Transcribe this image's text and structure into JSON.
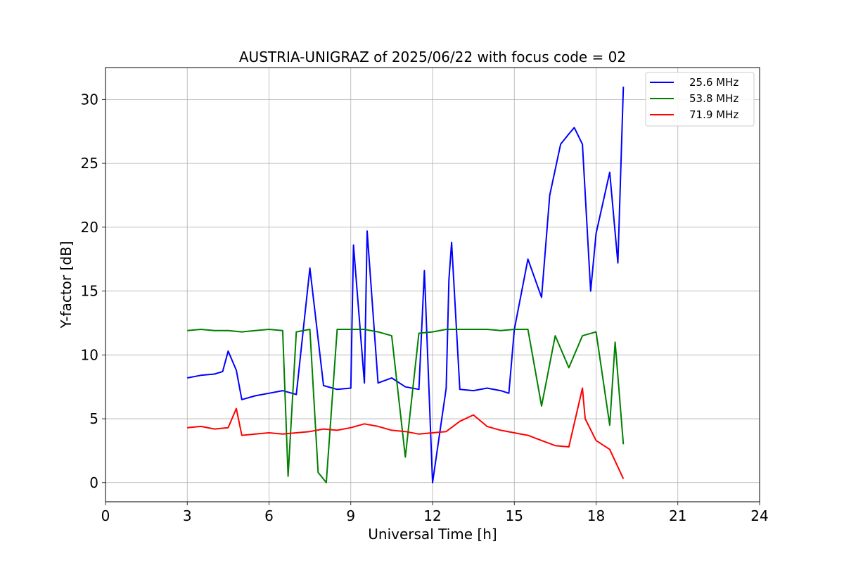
{
  "chart_data": {
    "type": "line",
    "title": "AUSTRIA-UNIGRAZ of 2025/06/22 with focus code = 02",
    "xlabel": "Universal Time [h]",
    "ylabel": "Y-factor [dB]",
    "xlim": [
      0,
      24
    ],
    "ylim": [
      -1.5,
      32.5
    ],
    "xticks": [
      0,
      3,
      6,
      9,
      12,
      15,
      18,
      21,
      24
    ],
    "yticks": [
      0,
      5,
      10,
      15,
      20,
      25,
      30
    ],
    "grid": true,
    "legend_position": "top-right",
    "series": [
      {
        "name": "25.6 MHz",
        "color": "#0000ff",
        "x": [
          3.0,
          3.5,
          4.0,
          4.3,
          4.5,
          4.8,
          5.0,
          5.5,
          6.0,
          6.5,
          7.0,
          7.5,
          8.0,
          8.5,
          9.0,
          9.1,
          9.5,
          9.6,
          10.0,
          10.5,
          11.0,
          11.5,
          11.7,
          12.0,
          12.5,
          12.6,
          12.7,
          13.0,
          13.5,
          14.0,
          14.5,
          14.8,
          15.0,
          15.5,
          16.0,
          16.3,
          16.7,
          17.0,
          17.2,
          17.5,
          17.8,
          18.0,
          18.5,
          18.8,
          19.0
        ],
        "y": [
          8.2,
          8.4,
          8.5,
          8.7,
          10.3,
          8.8,
          6.5,
          6.8,
          7.0,
          7.2,
          6.9,
          16.8,
          7.6,
          7.3,
          7.4,
          18.6,
          7.8,
          19.7,
          7.8,
          8.2,
          7.5,
          7.3,
          16.6,
          0.0,
          7.4,
          15.9,
          18.8,
          7.3,
          7.2,
          7.4,
          7.2,
          7.0,
          12.0,
          17.5,
          14.5,
          22.5,
          26.5,
          27.3,
          27.8,
          26.5,
          15.0,
          19.5,
          24.3,
          17.2,
          31.0
        ]
      },
      {
        "name": "53.8 MHz",
        "color": "#008000",
        "x": [
          3.0,
          3.5,
          4.0,
          4.5,
          5.0,
          5.5,
          6.0,
          6.5,
          6.7,
          7.0,
          7.5,
          7.8,
          8.1,
          8.5,
          9.0,
          9.5,
          10.0,
          10.5,
          11.0,
          11.5,
          12.0,
          12.5,
          13.0,
          13.5,
          14.0,
          14.5,
          15.0,
          15.5,
          16.0,
          16.5,
          17.0,
          17.5,
          18.0,
          18.5,
          18.7,
          19.0
        ],
        "y": [
          11.9,
          12.0,
          11.9,
          11.9,
          11.8,
          11.9,
          12.0,
          11.9,
          0.5,
          11.8,
          12.0,
          0.8,
          0.0,
          12.0,
          12.0,
          12.0,
          11.8,
          11.5,
          2.0,
          11.7,
          11.8,
          12.0,
          12.0,
          12.0,
          12.0,
          11.9,
          12.0,
          12.0,
          6.0,
          11.5,
          9.0,
          11.5,
          11.8,
          4.5,
          11.0,
          3.0
        ]
      },
      {
        "name": "71.9 MHz",
        "color": "#ff0000",
        "x": [
          3.0,
          3.5,
          4.0,
          4.5,
          4.8,
          5.0,
          5.5,
          6.0,
          6.5,
          7.0,
          7.5,
          8.0,
          8.5,
          9.0,
          9.5,
          10.0,
          10.5,
          11.0,
          11.5,
          12.0,
          12.5,
          13.0,
          13.5,
          14.0,
          14.5,
          15.0,
          15.5,
          16.0,
          16.5,
          17.0,
          17.5,
          17.6,
          18.0,
          18.5,
          19.0
        ],
        "y": [
          4.3,
          4.4,
          4.2,
          4.3,
          5.8,
          3.7,
          3.8,
          3.9,
          3.8,
          3.9,
          4.0,
          4.2,
          4.1,
          4.3,
          4.6,
          4.4,
          4.1,
          4.0,
          3.8,
          3.9,
          4.0,
          4.8,
          5.3,
          4.4,
          4.1,
          3.9,
          3.7,
          3.3,
          2.9,
          2.8,
          7.4,
          5.0,
          3.3,
          2.6,
          0.3
        ]
      }
    ]
  }
}
